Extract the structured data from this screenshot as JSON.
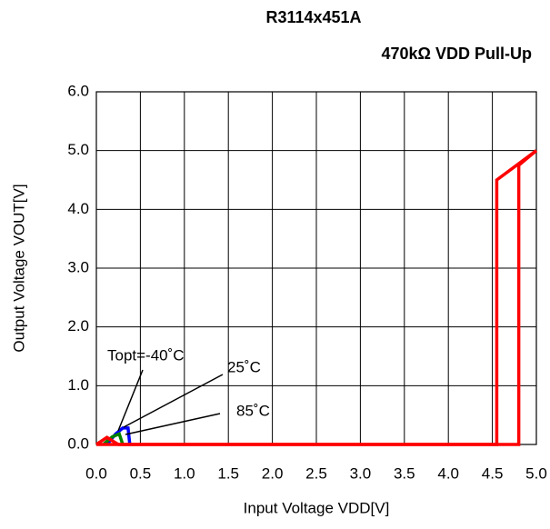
{
  "chart_data": {
    "type": "line",
    "title": "R3114x451A",
    "subtitle": "470kΩ VDD Pull-Up",
    "x_label": "Input Voltage VDD[V]",
    "y_label": "Output Voltage VOUT[V]",
    "xlim": [
      0,
      5
    ],
    "ylim": [
      0,
      6
    ],
    "xticks": [
      {
        "value": 0,
        "label": "0.0"
      },
      {
        "value": 0.5,
        "label": "0.5"
      },
      {
        "value": 1,
        "label": "1.0"
      },
      {
        "value": 1.5,
        "label": "1.5"
      },
      {
        "value": 2,
        "label": "2.0"
      },
      {
        "value": 2.5,
        "label": "2.5"
      },
      {
        "value": 3,
        "label": "3.0"
      },
      {
        "value": 3.5,
        "label": "3.5"
      },
      {
        "value": 4,
        "label": "4.0"
      },
      {
        "value": 4.5,
        "label": "4.5"
      },
      {
        "value": 5,
        "label": "5.0"
      }
    ],
    "yticks": [
      {
        "value": 0,
        "label": "0.0"
      },
      {
        "value": 1,
        "label": "1.0"
      },
      {
        "value": 2,
        "label": "2.0"
      },
      {
        "value": 3,
        "label": "3.0"
      },
      {
        "value": 4,
        "label": "4.0"
      },
      {
        "value": 5,
        "label": "5.0"
      },
      {
        "value": 6,
        "label": "6.0"
      }
    ],
    "grid": true,
    "series": [
      {
        "color": "#0000ff",
        "x": [
          0.12,
          0.22,
          0.3,
          0.36,
          0.38
        ],
        "values": [
          0,
          0.18,
          0.28,
          0.28,
          0
        ]
      },
      {
        "color": "#008000",
        "x": [
          0.08,
          0.18,
          0.26,
          0.3
        ],
        "values": [
          0,
          0.13,
          0.18,
          0
        ]
      },
      {
        "color": "#ff0000",
        "x": [
          0,
          0.12,
          0.25,
          4.55,
          4.55,
          5.0
        ],
        "values": [
          0,
          0.12,
          0,
          0,
          4.5,
          5.0
        ]
      },
      {
        "color": "#ff0000",
        "x": [
          5.0,
          4.8,
          4.8,
          0
        ],
        "values": [
          5.0,
          4.75,
          0,
          0
        ]
      }
    ],
    "annotations": [
      "Topt=-40˚C",
      "25˚C",
      "85˚C"
    ]
  }
}
